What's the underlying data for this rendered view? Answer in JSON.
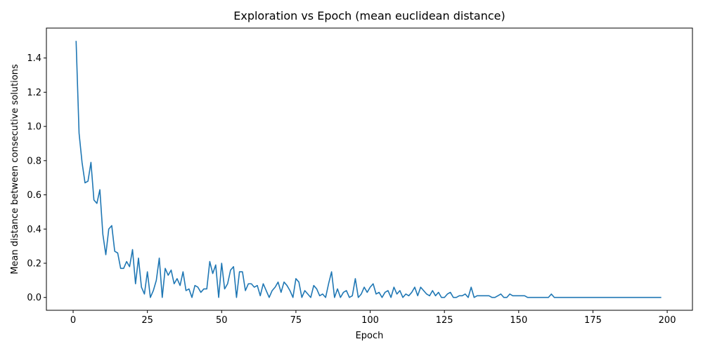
{
  "chart_data": {
    "type": "line",
    "title": "Exploration vs Epoch (mean euclidean distance)",
    "xlabel": "Epoch",
    "ylabel": "Mean distance between consecutive solutions",
    "xlim": [
      -9,
      208.5
    ],
    "ylim": [
      -0.075,
      1.575
    ],
    "xticks": [
      0,
      25,
      50,
      75,
      100,
      125,
      150,
      175,
      200
    ],
    "xtick_labels": [
      "0",
      "25",
      "50",
      "75",
      "100",
      "125",
      "150",
      "175",
      "200"
    ],
    "yticks": [
      0.0,
      0.2,
      0.4,
      0.6,
      0.8,
      1.0,
      1.2,
      1.4
    ],
    "ytick_labels": [
      "0.0",
      "0.2",
      "0.4",
      "0.6",
      "0.8",
      "1.0",
      "1.2",
      "1.4"
    ],
    "grid": false,
    "legend": "none",
    "line_color": "#1f77b4",
    "series": [
      {
        "x": [
          1,
          2,
          3,
          4,
          5,
          6,
          7,
          8,
          9,
          10,
          11,
          12,
          13,
          14,
          15,
          16,
          17,
          18,
          19,
          20,
          21,
          22,
          23,
          24,
          25,
          26,
          27,
          28,
          29,
          30,
          31,
          32,
          33,
          34,
          35,
          36,
          37,
          38,
          39,
          40,
          41,
          42,
          43,
          44,
          45,
          46,
          47,
          48,
          49,
          50,
          51,
          52,
          53,
          54,
          55,
          56,
          57,
          58,
          59,
          60,
          61,
          62,
          63,
          64,
          65,
          66,
          67,
          68,
          69,
          70,
          71,
          72,
          73,
          74,
          75,
          76,
          77,
          78,
          79,
          80,
          81,
          82,
          83,
          84,
          85,
          86,
          87,
          88,
          89,
          90,
          91,
          92,
          93,
          94,
          95,
          96,
          97,
          98,
          99,
          100,
          101,
          102,
          103,
          104,
          105,
          106,
          107,
          108,
          109,
          110,
          111,
          112,
          113,
          114,
          115,
          116,
          117,
          118,
          119,
          120,
          121,
          122,
          123,
          124,
          125,
          126,
          127,
          128,
          129,
          130,
          131,
          132,
          133,
          134,
          135,
          136,
          137,
          138,
          139,
          140,
          141,
          142,
          143,
          144,
          145,
          146,
          147,
          148,
          149,
          150,
          151,
          152,
          153,
          154,
          155,
          156,
          157,
          158,
          159,
          160,
          161,
          162,
          163,
          164,
          165,
          166,
          167,
          168,
          169,
          170,
          171,
          172,
          173,
          174,
          175,
          176,
          177,
          178,
          179,
          180,
          181,
          182,
          183,
          184,
          185,
          186,
          187,
          188,
          189,
          190,
          191,
          192,
          193,
          194,
          195,
          196,
          197,
          198
        ],
        "y": [
          1.5,
          0.96,
          0.79,
          0.67,
          0.68,
          0.79,
          0.57,
          0.55,
          0.63,
          0.37,
          0.25,
          0.4,
          0.42,
          0.27,
          0.26,
          0.17,
          0.17,
          0.21,
          0.18,
          0.28,
          0.08,
          0.23,
          0.06,
          0.02,
          0.15,
          0.0,
          0.04,
          0.1,
          0.23,
          0.0,
          0.17,
          0.13,
          0.16,
          0.08,
          0.11,
          0.07,
          0.15,
          0.04,
          0.05,
          0.0,
          0.07,
          0.06,
          0.03,
          0.05,
          0.05,
          0.21,
          0.14,
          0.19,
          0.0,
          0.2,
          0.05,
          0.08,
          0.16,
          0.18,
          0.0,
          0.15,
          0.15,
          0.04,
          0.08,
          0.08,
          0.06,
          0.07,
          0.01,
          0.08,
          0.04,
          0.0,
          0.04,
          0.06,
          0.09,
          0.03,
          0.09,
          0.07,
          0.04,
          0.0,
          0.11,
          0.09,
          0.0,
          0.04,
          0.02,
          0.0,
          0.07,
          0.05,
          0.01,
          0.02,
          0.0,
          0.08,
          0.15,
          0.0,
          0.05,
          0.0,
          0.03,
          0.04,
          0.0,
          0.01,
          0.11,
          0.0,
          0.02,
          0.06,
          0.03,
          0.06,
          0.08,
          0.02,
          0.03,
          0.0,
          0.03,
          0.04,
          0.0,
          0.06,
          0.02,
          0.04,
          0.0,
          0.02,
          0.01,
          0.03,
          0.06,
          0.01,
          0.06,
          0.04,
          0.02,
          0.01,
          0.04,
          0.01,
          0.03,
          0.0,
          0.0,
          0.02,
          0.03,
          0.0,
          0.0,
          0.01,
          0.01,
          0.02,
          0.0,
          0.06,
          0.0,
          0.01,
          0.01,
          0.01,
          0.01,
          0.01,
          0.0,
          0.0,
          0.01,
          0.02,
          0.0,
          0.0,
          0.02,
          0.01,
          0.01,
          0.01,
          0.01,
          0.01,
          0.0,
          0.0,
          0.0,
          0.0,
          0.0,
          0.0,
          0.0,
          0.0,
          0.02,
          0.0,
          0.0,
          0.0,
          0.0,
          0.0,
          0.0,
          0.0,
          0.0,
          0.0,
          0.0,
          0.0,
          0.0,
          0.0,
          0.0,
          0.0,
          0.0,
          0.0,
          0.0,
          0.0,
          0.0,
          0.0,
          0.0,
          0.0,
          0.0,
          0.0,
          0.0,
          0.0,
          0.0,
          0.0,
          0.0,
          0.0,
          0.0,
          0.0,
          0.0,
          0.0,
          0.0,
          0.0
        ]
      }
    ]
  }
}
